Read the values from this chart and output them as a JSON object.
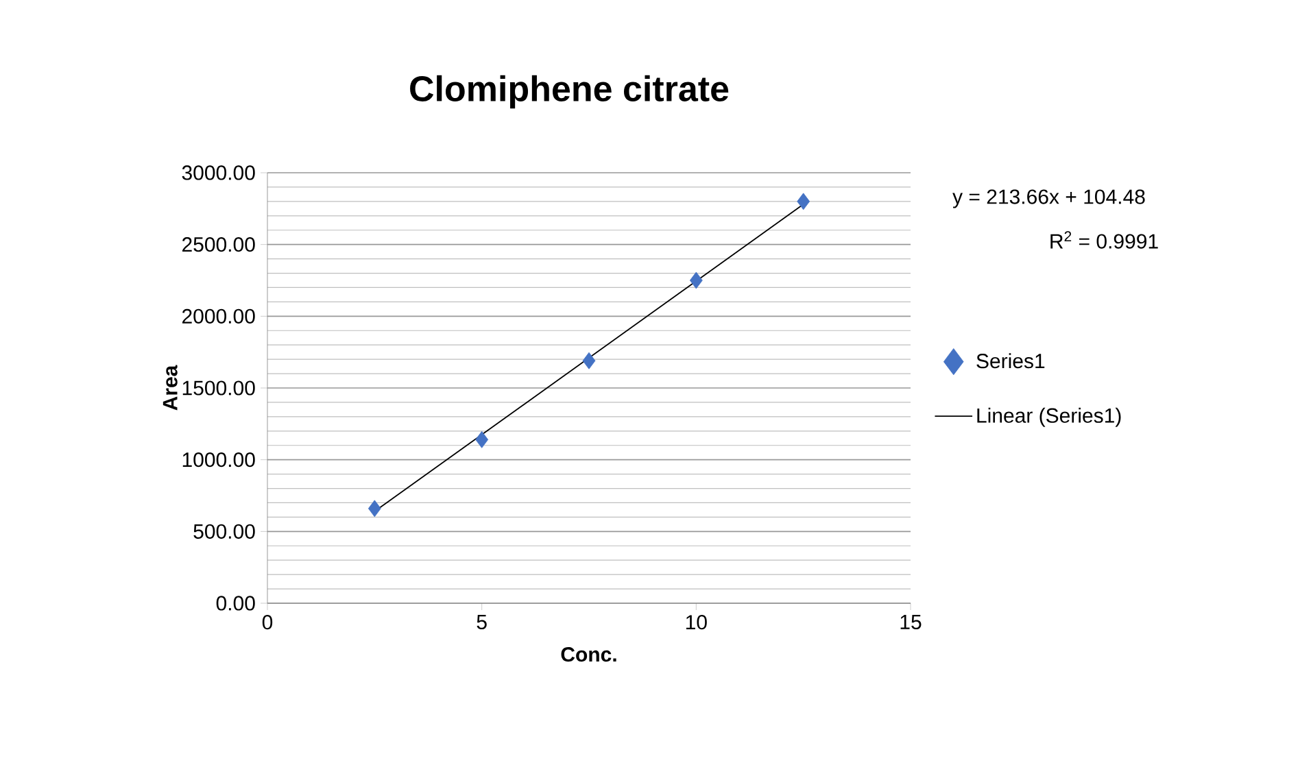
{
  "chart_data": {
    "type": "scatter",
    "title": "Clomiphene citrate",
    "xlabel": "Conc.",
    "ylabel": "Area",
    "annotations": [
      "y = 213.66x + 104.48",
      "R$^{2}$ = 0.9991"
    ],
    "series": [
      {
        "name": "Series1",
        "marker": "diamond",
        "color": "#4472c4",
        "x": [
          2.5,
          5,
          7.5,
          10,
          12.5
        ],
        "values": [
          660,
          1140,
          1690,
          2250,
          2800
        ]
      },
      {
        "name": "Linear (Series1)",
        "type": "line",
        "marker": "none",
        "line_style": "solid",
        "color": "#000000",
        "x": [
          2.5,
          12.5
        ],
        "values": [
          640,
          2780
        ]
      }
    ],
    "xlim": [
      0,
      15
    ],
    "xticks": [
      0,
      5,
      10,
      15
    ],
    "ylim": [
      0,
      3000
    ],
    "yticks": [
      {
        "value": 0,
        "label": "0.00"
      },
      {
        "value": 500,
        "label": "500.00"
      },
      {
        "value": 1000,
        "label": "1000.00"
      },
      {
        "value": 1500,
        "label": "1500.00"
      },
      {
        "value": 2000,
        "label": "2000.00"
      },
      {
        "value": 2500,
        "label": "2500.00"
      },
      {
        "value": 3000,
        "label": "3000.00"
      }
    ],
    "grid": "y",
    "legend": "right"
  }
}
